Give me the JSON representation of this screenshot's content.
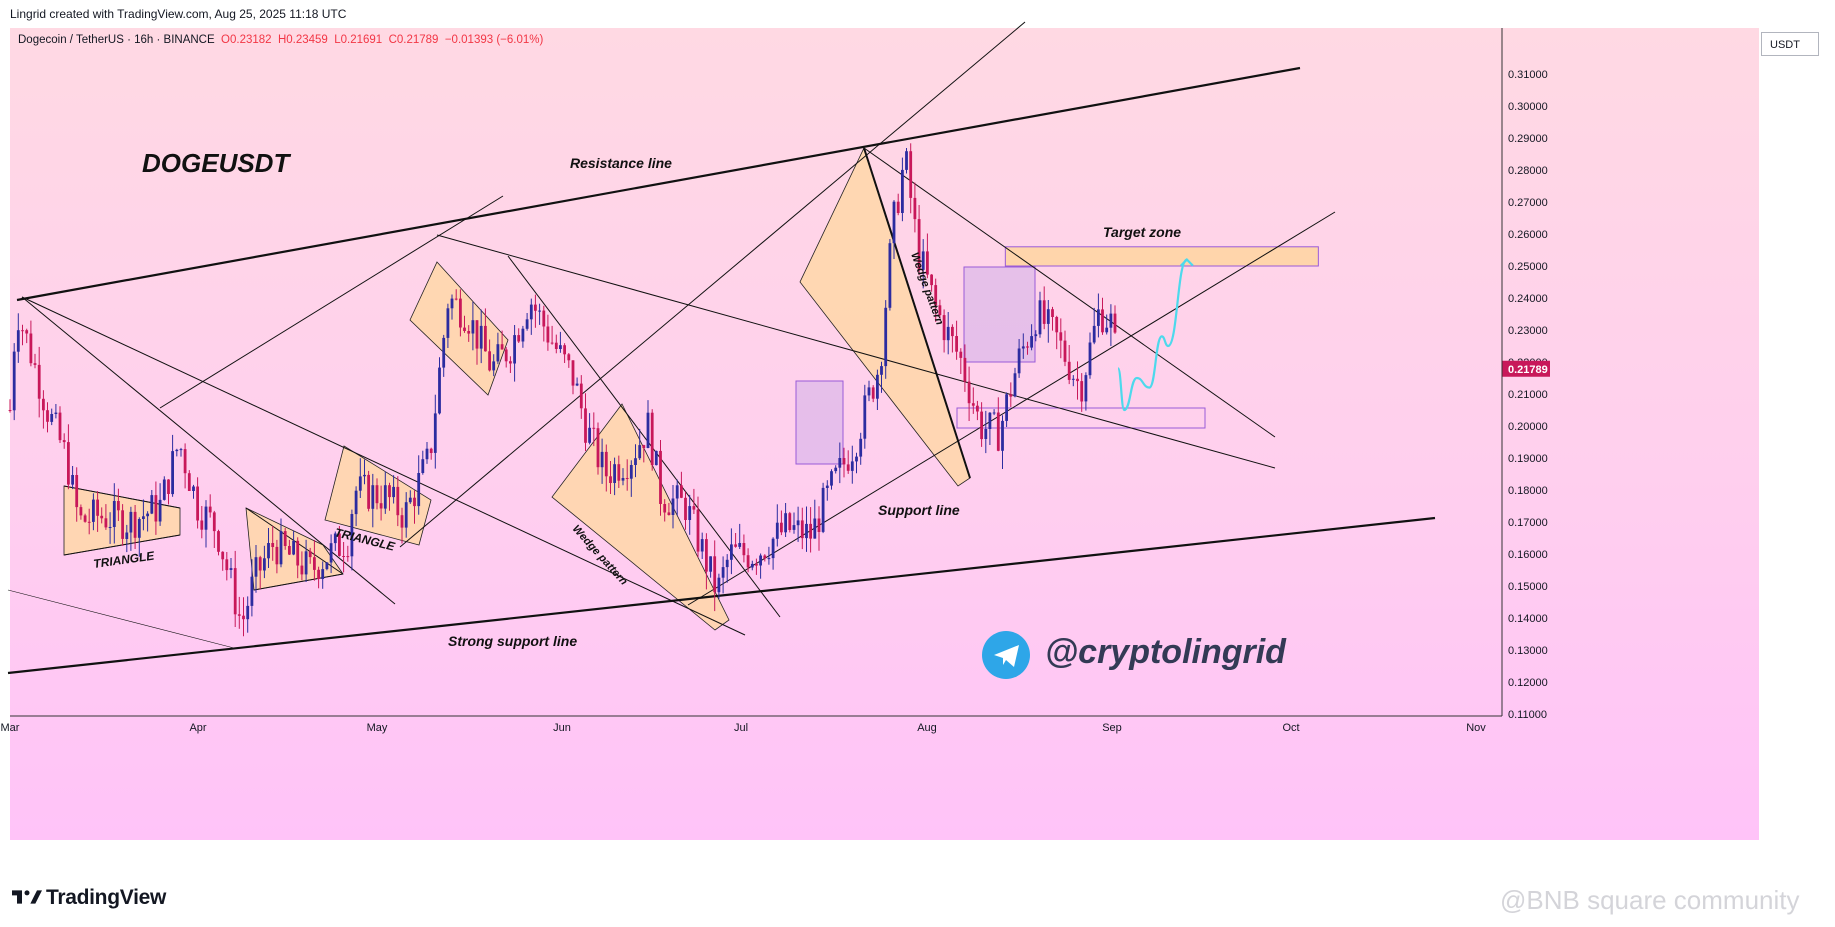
{
  "header": {
    "created_by": "Lingrid created with TradingView.com, Aug 25, 2025 11:18 UTC"
  },
  "symbol_info": {
    "name": "Dogecoin / TetherUS · 16h · BINANCE",
    "open": "O0.23182",
    "high": "H0.23459",
    "low": "L0.21691",
    "close": "C0.21789",
    "change": "−0.01393 (−6.01%)"
  },
  "price_axis": {
    "unit": "USDT",
    "last_price": "0.21789"
  },
  "annotations": {
    "symbol_title": "DOGEUSDT",
    "resistance": "Resistance line",
    "strong_support": "Strong support line",
    "support": "Support line",
    "target_zone": "Target zone",
    "triangle_1": "TRIANGLE",
    "triangle_2": "TRIANGLE",
    "wedge_1": "Wedge pattern",
    "wedge_2": "Wedge pattern",
    "handle": "@cryptolingrid"
  },
  "footer": {
    "brand": "TradingView",
    "watermark": "@BNB square community"
  },
  "colors": {
    "bull": "#2c2ca0",
    "bear": "#c8185a",
    "bg_top": "#ffd6e4",
    "bg_bottom": "#ffc3f6",
    "zone": "#ffd7a8",
    "telegram": "#2ea6e8",
    "projection": "#4dd9ec"
  },
  "chart_data": {
    "type": "candlestick",
    "title": "Dogecoin / TetherUS · 16h · BINANCE",
    "ylim": [
      0.11,
      0.315
    ],
    "x_tick_labels": [
      "Mar",
      "Apr",
      "May",
      "Jun",
      "Jul",
      "Aug",
      "Sep",
      "Oct",
      "Nov"
    ],
    "y_tick_labels": [
      "0.31000",
      "0.30000",
      "0.29000",
      "0.28000",
      "0.27000",
      "0.26000",
      "0.25000",
      "0.24000",
      "0.23000",
      "0.22000",
      "0.21000",
      "0.20000",
      "0.19000",
      "0.18000",
      "0.17000",
      "0.16000",
      "0.15000",
      "0.14000",
      "0.13000",
      "0.12000",
      "0.11000"
    ],
    "price_path": [
      [
        "Mar 01",
        0.205
      ],
      [
        "Mar 02",
        0.237
      ],
      [
        "Mar 04",
        0.225
      ],
      [
        "Mar 07",
        0.205
      ],
      [
        "Mar 10",
        0.19
      ],
      [
        "Mar 12",
        0.17
      ],
      [
        "Mar 15",
        0.172
      ],
      [
        "Mar 20",
        0.17
      ],
      [
        "Mar 25",
        0.175
      ],
      [
        "Mar 28",
        0.195
      ],
      [
        "Mar 31",
        0.175
      ],
      [
        "Apr 03",
        0.168
      ],
      [
        "Apr 07",
        0.138
      ],
      [
        "Apr 09",
        0.152
      ],
      [
        "Apr 12",
        0.163
      ],
      [
        "Apr 18",
        0.155
      ],
      [
        "Apr 24",
        0.165
      ],
      [
        "Apr 25",
        0.18
      ],
      [
        "Apr 30",
        0.178
      ],
      [
        "May 03",
        0.172
      ],
      [
        "May 07",
        0.19
      ],
      [
        "May 10",
        0.24
      ],
      [
        "May 13",
        0.235
      ],
      [
        "May 17",
        0.218
      ],
      [
        "May 20",
        0.225
      ],
      [
        "May 23",
        0.24
      ],
      [
        "May 27",
        0.225
      ],
      [
        "May 30",
        0.215
      ],
      [
        "Jun 01",
        0.2
      ],
      [
        "Jun 04",
        0.185
      ],
      [
        "Jun 08",
        0.19
      ],
      [
        "Jun 11",
        0.2
      ],
      [
        "Jun 13",
        0.178
      ],
      [
        "Jun 17",
        0.175
      ],
      [
        "Jun 22",
        0.148
      ],
      [
        "Jun 24",
        0.16
      ],
      [
        "Jun 28",
        0.16
      ],
      [
        "Jul 03",
        0.168
      ],
      [
        "Jul 07",
        0.166
      ],
      [
        "Jul 10",
        0.18
      ],
      [
        "Jul 14",
        0.195
      ],
      [
        "Jul 18",
        0.22
      ],
      [
        "Jul 20",
        0.262
      ],
      [
        "Jul 22",
        0.284
      ],
      [
        "Jul 24",
        0.255
      ],
      [
        "Jul 27",
        0.236
      ],
      [
        "Jul 31",
        0.22
      ],
      [
        "Aug 03",
        0.2
      ],
      [
        "Aug 06",
        0.198
      ],
      [
        "Aug 09",
        0.22
      ],
      [
        "Aug 12",
        0.235
      ],
      [
        "Aug 15",
        0.228
      ],
      [
        "Aug 19",
        0.212
      ],
      [
        "Aug 22",
        0.236
      ],
      [
        "Aug 24",
        0.232
      ],
      [
        "Aug 25",
        0.218
      ]
    ],
    "projection": [
      [
        "Aug 25",
        0.218
      ],
      [
        "Aug 26",
        0.205
      ],
      [
        "Aug 28",
        0.215
      ],
      [
        "Aug 30",
        0.212
      ],
      [
        "Sep 01",
        0.228
      ],
      [
        "Sep 02",
        0.225
      ],
      [
        "Sep 05",
        0.252
      ]
    ],
    "zones": [
      {
        "label": "Target zone",
        "from": "Aug 07",
        "to": "Sep 26",
        "y_low": 0.25,
        "y_high": 0.256
      }
    ],
    "grid": false
  }
}
